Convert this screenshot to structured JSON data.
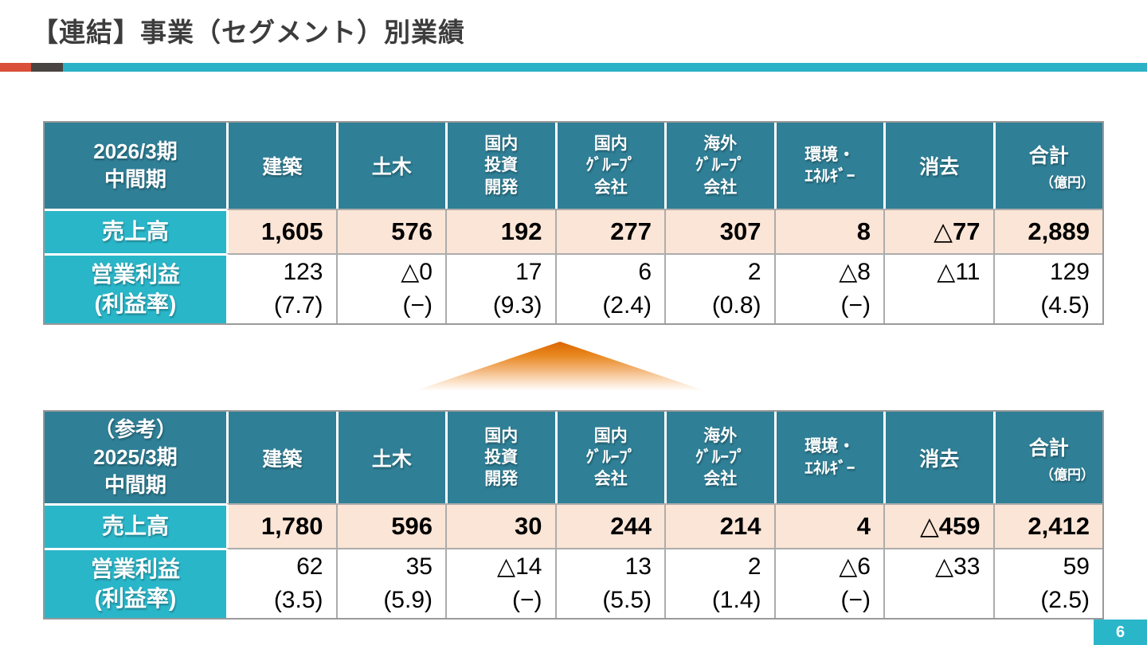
{
  "slide": {
    "title": "【連結】事業（セグメント）別業績",
    "page_number": "6"
  },
  "colors": {
    "header_teal": "#2F7F96",
    "label_cyan": "#2AB6C9",
    "sales_peach": "#FBE5D6",
    "accent_orange": "#D94F38",
    "accent_dark": "#4A4440",
    "accent_teal": "#2BB2C6",
    "triangle_orange": "#DB6500",
    "border_gray": "#9A9A9A"
  },
  "columns": {
    "construction": "建築",
    "civil_engineering": "土木",
    "domestic_investment_dev": [
      "国内",
      "投資",
      "開発"
    ],
    "domestic_group": [
      "国内",
      "ｸﾞﾙｰﾌﾟ",
      "会社"
    ],
    "overseas_group": [
      "海外",
      "ｸﾞﾙｰﾌﾟ",
      "会社"
    ],
    "environment_energy": [
      "環境・",
      "ｴﾈﾙｷﾞｰ"
    ],
    "elimination": "消去",
    "total": "合計",
    "unit": "（億円）"
  },
  "tables": [
    {
      "period": [
        "2026/3期",
        "中間期"
      ],
      "sales_label": "売上高",
      "profit_label": [
        "営業利益",
        "(利益率)"
      ],
      "sales": [
        "1,605",
        "576",
        "192",
        "277",
        "307",
        "8",
        "△77",
        "2,889"
      ],
      "profit": [
        "123",
        "△0",
        "17",
        "6",
        "2",
        "△8",
        "△11",
        "129"
      ],
      "margin": [
        "(7.7)",
        "(−)",
        "(9.3)",
        "(2.4)",
        "(0.8)",
        "(−)",
        "",
        "(4.5)"
      ]
    },
    {
      "period": [
        "（参考）",
        "2025/3期",
        "中間期"
      ],
      "sales_label": "売上高",
      "profit_label": [
        "営業利益",
        "(利益率)"
      ],
      "sales": [
        "1,780",
        "596",
        "30",
        "244",
        "214",
        "4",
        "△459",
        "2,412"
      ],
      "profit": [
        "62",
        "35",
        "△14",
        "13",
        "2",
        "△6",
        "△33",
        "59"
      ],
      "margin": [
        "(3.5)",
        "(5.9)",
        "(−)",
        "(5.5)",
        "(1.4)",
        "(−)",
        "",
        "(2.5)"
      ]
    }
  ]
}
